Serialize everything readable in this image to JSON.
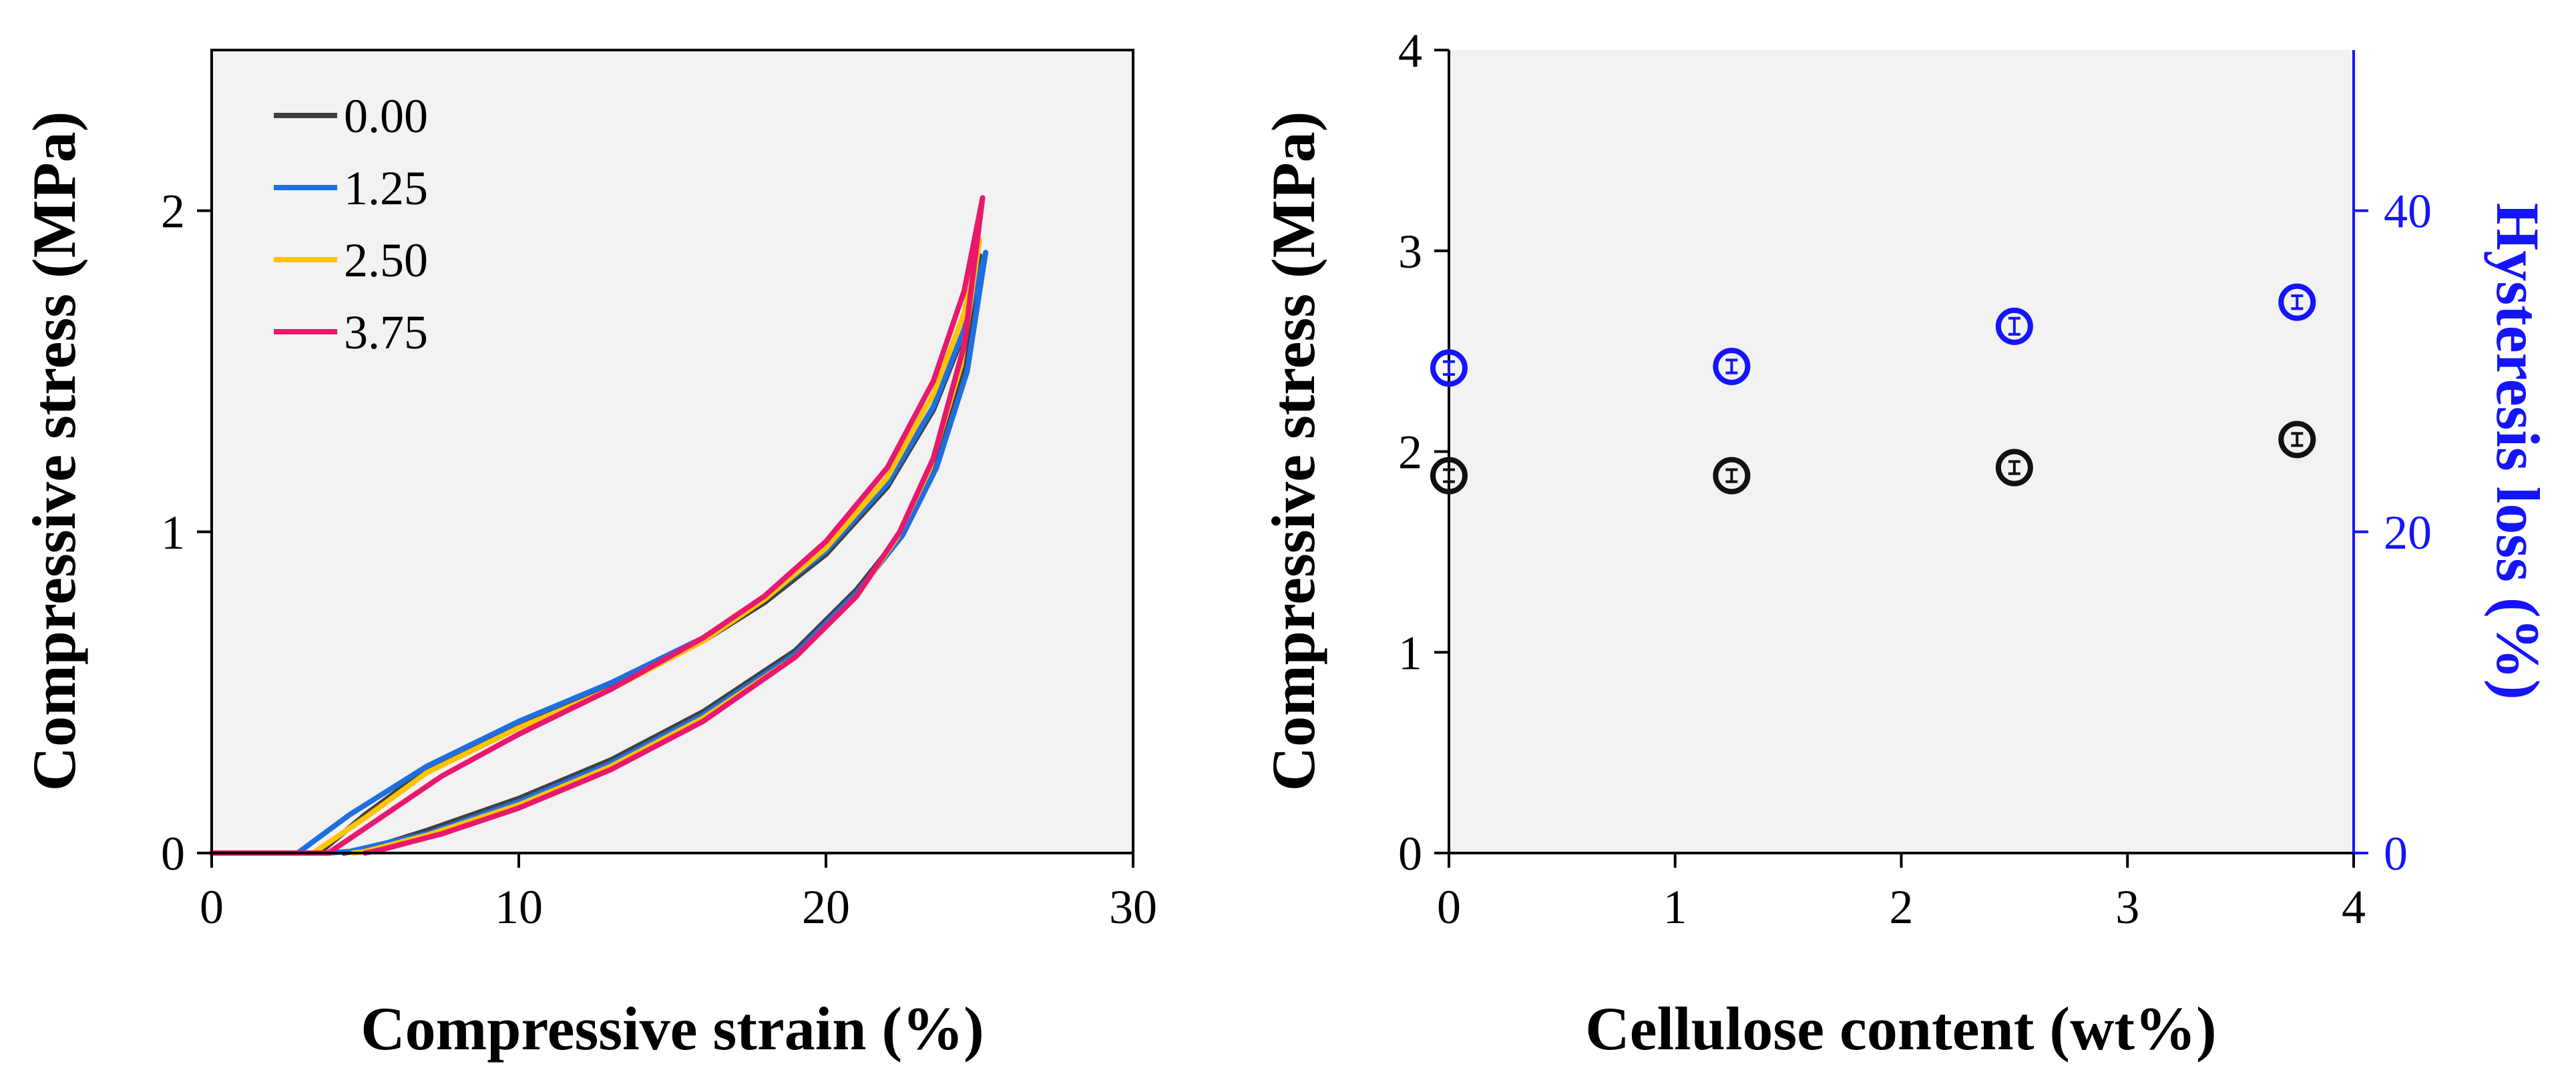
{
  "colors": {
    "plot_bg": "#f2f2f2",
    "axis": "#000000",
    "secondary_axis": "#1414ff",
    "s0": "#404040",
    "s1": "#1f6fe0",
    "s2": "#ffc400",
    "s3": "#e8186e",
    "hysteresis_marker": "#1414ff",
    "stress_marker": "#111111"
  },
  "chart_data": [
    {
      "type": "line",
      "title": "",
      "xlabel": "Compressive strain (%)",
      "ylabel": "Compressive stress (MPa)",
      "xlim": [
        0,
        30
      ],
      "ylim": [
        0,
        2.5
      ],
      "xticks": [
        0,
        10,
        20,
        30
      ],
      "yticks": [
        0,
        1,
        2
      ],
      "legend": "top-left",
      "series": [
        {
          "name": "0.00",
          "color_key": "s0",
          "loading": [
            [
              0,
              0
            ],
            [
              3.5,
              0
            ],
            [
              5,
              0.12
            ],
            [
              7,
              0.26
            ],
            [
              10,
              0.4
            ],
            [
              13,
              0.52
            ],
            [
              16,
              0.66
            ],
            [
              18,
              0.78
            ],
            [
              20,
              0.93
            ],
            [
              22,
              1.14
            ],
            [
              23.5,
              1.38
            ],
            [
              24.5,
              1.62
            ],
            [
              25,
              1.86
            ]
          ],
          "unloading": [
            [
              25,
              1.86
            ],
            [
              24.5,
              1.52
            ],
            [
              23.5,
              1.2
            ],
            [
              22.5,
              1.0
            ],
            [
              21,
              0.82
            ],
            [
              19,
              0.63
            ],
            [
              16,
              0.44
            ],
            [
              13,
              0.29
            ],
            [
              10,
              0.17
            ],
            [
              7,
              0.07
            ],
            [
              5,
              0.01
            ],
            [
              4.3,
              0
            ]
          ]
        },
        {
          "name": "1.25",
          "color_key": "s1",
          "loading": [
            [
              0,
              0
            ],
            [
              2.8,
              0
            ],
            [
              4.5,
              0.12
            ],
            [
              7,
              0.27
            ],
            [
              10,
              0.41
            ],
            [
              13,
              0.53
            ],
            [
              16,
              0.67
            ],
            [
              18,
              0.79
            ],
            [
              20,
              0.94
            ],
            [
              22,
              1.15
            ],
            [
              23.5,
              1.39
            ],
            [
              24.5,
              1.63
            ],
            [
              25.2,
              1.87
            ]
          ],
          "unloading": [
            [
              25.2,
              1.87
            ],
            [
              24.6,
              1.5
            ],
            [
              23.6,
              1.2
            ],
            [
              22.5,
              0.99
            ],
            [
              21,
              0.81
            ],
            [
              19,
              0.62
            ],
            [
              16,
              0.43
            ],
            [
              13,
              0.28
            ],
            [
              10,
              0.16
            ],
            [
              7,
              0.06
            ],
            [
              4.5,
              0.005
            ],
            [
              3.8,
              0
            ]
          ]
        },
        {
          "name": "2.50",
          "color_key": "s2",
          "loading": [
            [
              0,
              0
            ],
            [
              3.3,
              0
            ],
            [
              5,
              0.11
            ],
            [
              7,
              0.25
            ],
            [
              10,
              0.39
            ],
            [
              13,
              0.51
            ],
            [
              16,
              0.66
            ],
            [
              18,
              0.79
            ],
            [
              20,
              0.95
            ],
            [
              22,
              1.17
            ],
            [
              23.5,
              1.43
            ],
            [
              24.5,
              1.68
            ],
            [
              25,
              1.91
            ]
          ],
          "unloading": [
            [
              25,
              1.91
            ],
            [
              24.4,
              1.52
            ],
            [
              23.4,
              1.2
            ],
            [
              22.3,
              0.98
            ],
            [
              21,
              0.8
            ],
            [
              19,
              0.61
            ],
            [
              16,
              0.42
            ],
            [
              13,
              0.27
            ],
            [
              10,
              0.15
            ],
            [
              7,
              0.055
            ],
            [
              5,
              0.005
            ],
            [
              4.6,
              0
            ]
          ]
        },
        {
          "name": "3.75",
          "color_key": "s3",
          "loading": [
            [
              0,
              0
            ],
            [
              3.8,
              0
            ],
            [
              5.5,
              0.11
            ],
            [
              7.5,
              0.24
            ],
            [
              10,
              0.37
            ],
            [
              13,
              0.51
            ],
            [
              16,
              0.67
            ],
            [
              18,
              0.8
            ],
            [
              20,
              0.97
            ],
            [
              22,
              1.2
            ],
            [
              23.5,
              1.47
            ],
            [
              24.5,
              1.75
            ],
            [
              25.1,
              2.04
            ]
          ],
          "unloading": [
            [
              25.1,
              2.04
            ],
            [
              24.5,
              1.58
            ],
            [
              23.5,
              1.23
            ],
            [
              22.4,
              1.0
            ],
            [
              21,
              0.8
            ],
            [
              19,
              0.61
            ],
            [
              16,
              0.41
            ],
            [
              13,
              0.26
            ],
            [
              10,
              0.14
            ],
            [
              7.5,
              0.06
            ],
            [
              5.5,
              0.01
            ],
            [
              5,
              0
            ]
          ]
        }
      ]
    },
    {
      "type": "scatter",
      "title": "",
      "xlabel": "Cellulose content (wt%)",
      "ylabel": "Compressive stress (MPa)",
      "ylabel_right": "Hysteresis loss (%)",
      "xlim": [
        0,
        4
      ],
      "ylim": [
        0,
        4
      ],
      "ylim_right": [
        0,
        50
      ],
      "xticks": [
        0,
        1,
        2,
        3,
        4
      ],
      "yticks": [
        0,
        1,
        2,
        3,
        4
      ],
      "yticks_right": [
        0,
        20,
        40
      ],
      "series": [
        {
          "name": "Compressive stress",
          "axis": "left",
          "color_key": "stress_marker",
          "x": [
            0,
            1.25,
            2.5,
            3.75
          ],
          "y": [
            1.88,
            1.88,
            1.92,
            2.06
          ],
          "err": [
            0.03,
            0.03,
            0.03,
            0.03
          ]
        },
        {
          "name": "Hysteresis loss",
          "axis": "right",
          "color_key": "hysteresis_marker",
          "x": [
            0,
            1.25,
            2.5,
            3.75
          ],
          "y": [
            30.2,
            30.3,
            32.8,
            34.3
          ],
          "err": [
            0.4,
            0.4,
            0.5,
            0.4
          ]
        }
      ]
    }
  ]
}
